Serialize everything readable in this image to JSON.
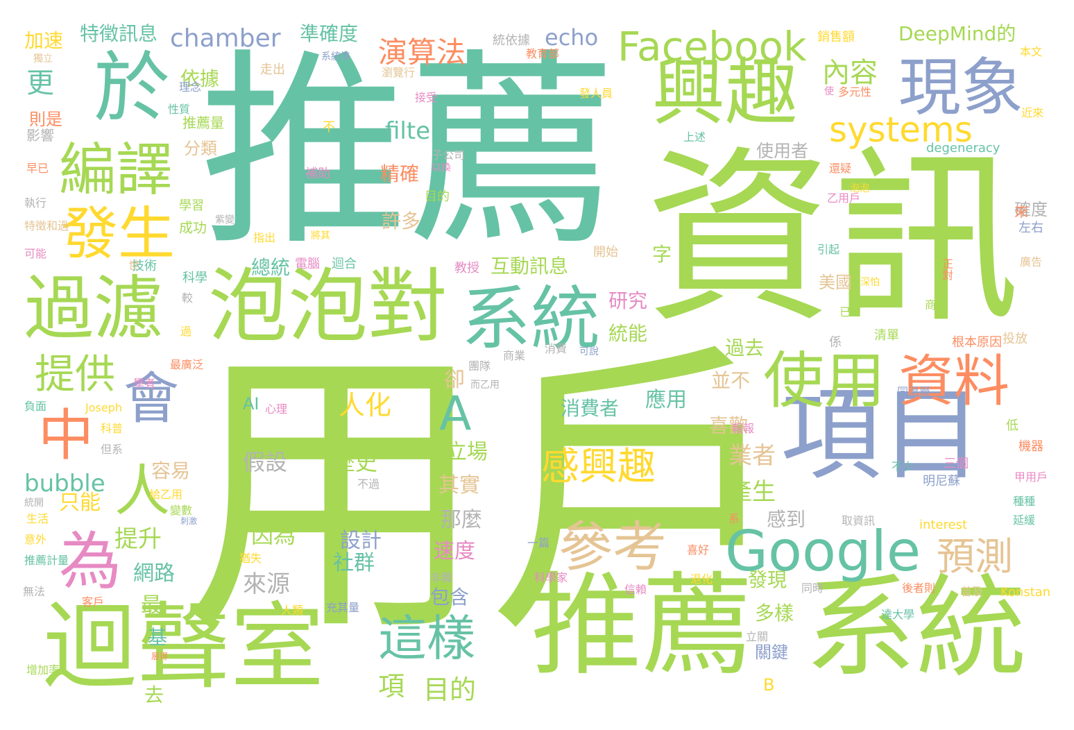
{
  "colors": {
    "teal": "#66c2a5",
    "lime": "#a6d854",
    "indigo": "#8da0cb",
    "orange": "#fc8d62",
    "yellow": "#ffd92f",
    "tan": "#e5c494",
    "pink": "#e78ac3",
    "gray": "#b3b3b3"
  },
  "words": [
    {
      "text": "用戶",
      "color": "lime"
    },
    {
      "text": "推薦",
      "color": "teal"
    },
    {
      "text": "資訊",
      "color": "lime"
    },
    {
      "text": "推薦",
      "color": "lime"
    },
    {
      "text": "系統",
      "color": "lime"
    },
    {
      "text": "迴聲室",
      "color": "lime"
    },
    {
      "text": "項目",
      "color": "indigo"
    },
    {
      "text": "泡泡對",
      "color": "lime"
    },
    {
      "text": "系統",
      "color": "teal"
    },
    {
      "text": "過濾",
      "color": "lime"
    },
    {
      "text": "興趣",
      "color": "lime"
    },
    {
      "text": "於",
      "color": "teal"
    },
    {
      "text": "現象",
      "color": "indigo"
    },
    {
      "text": "編譯",
      "color": "lime"
    },
    {
      "text": "發生",
      "color": "yellow"
    },
    {
      "text": "使用",
      "color": "lime"
    },
    {
      "text": "資料",
      "color": "orange"
    },
    {
      "text": "Google",
      "color": "teal"
    },
    {
      "text": "參考",
      "color": "tan"
    },
    {
      "text": "這樣",
      "color": "teal"
    },
    {
      "text": "Facebook",
      "color": "lime"
    },
    {
      "text": "systems",
      "color": "yellow"
    },
    {
      "text": "會",
      "color": "indigo"
    },
    {
      "text": "A",
      "color": "teal"
    },
    {
      "text": "中",
      "color": "orange"
    },
    {
      "text": "人",
      "color": "lime"
    },
    {
      "text": "為",
      "color": "pink"
    },
    {
      "text": "提供",
      "color": "lime"
    },
    {
      "text": "感興趣",
      "color": "yellow"
    },
    {
      "text": "預測",
      "color": "tan"
    },
    {
      "text": "演算法",
      "color": "orange"
    },
    {
      "text": "內容",
      "color": "lime"
    },
    {
      "text": "chamber",
      "color": "indigo"
    },
    {
      "text": "echo",
      "color": "indigo"
    },
    {
      "text": "DeepMind的",
      "color": "lime"
    },
    {
      "text": "特徵訊息",
      "color": "teal"
    },
    {
      "text": "準確度",
      "color": "teal"
    },
    {
      "text": "加速",
      "color": "yellow"
    },
    {
      "text": "filter",
      "color": "teal"
    },
    {
      "text": "bubble",
      "color": "teal"
    },
    {
      "text": "依據",
      "color": "lime"
    },
    {
      "text": "更",
      "color": "teal"
    },
    {
      "text": "人化",
      "color": "yellow"
    },
    {
      "text": "使用者",
      "color": "gray"
    },
    {
      "text": "業者",
      "color": "tan"
    },
    {
      "text": "產生",
      "color": "lime"
    },
    {
      "text": "項",
      "color": "lime"
    },
    {
      "text": "目的",
      "color": "lime"
    },
    {
      "text": "來源",
      "color": "gray"
    },
    {
      "text": "網路",
      "color": "teal"
    },
    {
      "text": "提升",
      "color": "lime"
    },
    {
      "text": "只能",
      "color": "yellow"
    },
    {
      "text": "容易",
      "color": "tan"
    },
    {
      "text": "因為",
      "color": "lime"
    },
    {
      "text": "設計",
      "color": "indigo"
    },
    {
      "text": "社群",
      "color": "teal"
    },
    {
      "text": "歷史",
      "color": "lime"
    },
    {
      "text": "假設",
      "color": "gray"
    },
    {
      "text": "應用",
      "color": "teal"
    },
    {
      "text": "消費者",
      "color": "teal"
    },
    {
      "text": "立場",
      "color": "lime"
    },
    {
      "text": "其實",
      "color": "tan"
    },
    {
      "text": "那麼",
      "color": "gray"
    },
    {
      "text": "速度",
      "color": "pink"
    },
    {
      "text": "包含",
      "color": "indigo"
    },
    {
      "text": "過去",
      "color": "lime"
    },
    {
      "text": "喜歡",
      "color": "tan"
    },
    {
      "text": "感到",
      "color": "gray"
    },
    {
      "text": "發現",
      "color": "lime"
    },
    {
      "text": "多樣",
      "color": "lime"
    },
    {
      "text": "關鍵",
      "color": "indigo"
    },
    {
      "text": "最",
      "color": "lime"
    },
    {
      "text": "基",
      "color": "teal"
    },
    {
      "text": "去",
      "color": "lime"
    },
    {
      "text": "互動訊息",
      "color": "lime"
    },
    {
      "text": "研究",
      "color": "pink"
    },
    {
      "text": "統能",
      "color": "lime"
    },
    {
      "text": "總統",
      "color": "teal"
    },
    {
      "text": "許多",
      "color": "tan"
    },
    {
      "text": "精確",
      "color": "orange"
    },
    {
      "text": "分類",
      "color": "tan"
    },
    {
      "text": "美國",
      "color": "tan"
    },
    {
      "text": "並不",
      "color": "tan"
    },
    {
      "text": "卻",
      "color": "tan"
    },
    {
      "text": "字",
      "color": "lime"
    },
    {
      "text": "AI",
      "color": "teal"
    },
    {
      "text": "B",
      "color": "yellow"
    },
    {
      "text": "interest",
      "color": "yellow"
    },
    {
      "text": "degeneracy",
      "color": "teal"
    },
    {
      "text": "成功",
      "color": "lime"
    },
    {
      "text": "推薦量",
      "color": "lime"
    },
    {
      "text": "則是",
      "color": "orange"
    },
    {
      "text": "影響",
      "color": "gray"
    },
    {
      "text": "學習",
      "color": "lime"
    },
    {
      "text": "技術",
      "color": "teal"
    },
    {
      "text": "科學",
      "color": "teal"
    },
    {
      "text": "電腦",
      "color": "pink"
    },
    {
      "text": "迴合",
      "color": "teal"
    },
    {
      "text": "教授",
      "color": "pink"
    },
    {
      "text": "開始",
      "color": "tan"
    },
    {
      "text": "目的",
      "color": "lime"
    },
    {
      "text": "不",
      "color": "yellow"
    },
    {
      "text": "補助",
      "color": "pink"
    },
    {
      "text": "走出",
      "color": "tan"
    },
    {
      "text": "統依據",
      "color": "gray"
    },
    {
      "text": "銷售額",
      "color": "yellow"
    },
    {
      "text": "本文",
      "color": "yellow"
    },
    {
      "text": "教育部",
      "color": "orange"
    },
    {
      "text": "瀏覽行",
      "color": "tan"
    },
    {
      "text": "接受",
      "color": "pink"
    },
    {
      "text": "發人員",
      "color": "yellow"
    },
    {
      "text": "多元性",
      "color": "orange"
    },
    {
      "text": "近來",
      "color": "yellow"
    },
    {
      "text": "上述",
      "color": "teal"
    },
    {
      "text": "還疑",
      "color": "orange"
    },
    {
      "text": "泡泡",
      "color": "yellow"
    },
    {
      "text": "乙用戶",
      "color": "pink"
    },
    {
      "text": "確度",
      "color": "gray"
    },
    {
      "text": "來",
      "color": "orange"
    },
    {
      "text": "左右",
      "color": "indigo"
    },
    {
      "text": "引起",
      "color": "teal"
    },
    {
      "text": "廣告",
      "color": "tan"
    },
    {
      "text": "商機",
      "color": "lime"
    },
    {
      "text": "已",
      "color": "lime"
    },
    {
      "text": "係",
      "color": "gray"
    },
    {
      "text": "清單",
      "color": "lime"
    },
    {
      "text": "根本原因",
      "color": "orange"
    },
    {
      "text": "投放",
      "color": "tan"
    },
    {
      "text": "同溫層",
      "color": "indigo"
    },
    {
      "text": "低",
      "color": "lime"
    },
    {
      "text": "機器",
      "color": "orange"
    },
    {
      "text": "三個",
      "color": "pink"
    },
    {
      "text": "明尼蘇",
      "color": "indigo"
    },
    {
      "text": "甲用戶",
      "color": "pink"
    },
    {
      "text": "種種",
      "color": "teal"
    },
    {
      "text": "延緩",
      "color": "teal"
    },
    {
      "text": "取資訊",
      "color": "gray"
    },
    {
      "text": "系",
      "color": "orange"
    },
    {
      "text": "不少",
      "color": "teal"
    },
    {
      "text": "報報",
      "color": "pink"
    },
    {
      "text": "立關",
      "color": "gray"
    },
    {
      "text": "達大學",
      "color": "teal"
    },
    {
      "text": "Konstan",
      "color": "yellow"
    },
    {
      "text": "普及",
      "color": "tan"
    },
    {
      "text": "後者則",
      "color": "orange"
    },
    {
      "text": "同時",
      "color": "gray"
    },
    {
      "text": "喜好",
      "color": "orange"
    },
    {
      "text": "退化",
      "color": "yellow"
    },
    {
      "text": "信賴",
      "color": "pink"
    },
    {
      "text": "科學家",
      "color": "pink"
    },
    {
      "text": "非難",
      "color": "gray"
    },
    {
      "text": "一篇",
      "color": "indigo"
    },
    {
      "text": "商業",
      "color": "gray"
    },
    {
      "text": "消費",
      "color": "gray"
    },
    {
      "text": "可說",
      "color": "indigo"
    },
    {
      "text": "團隊",
      "color": "gray"
    },
    {
      "text": "而乙用",
      "color": "gray"
    },
    {
      "text": "心理",
      "color": "pink"
    },
    {
      "text": "不過",
      "color": "gray"
    },
    {
      "text": "猶失",
      "color": "yellow"
    },
    {
      "text": "人類",
      "color": "yellow"
    },
    {
      "text": "充其量",
      "color": "indigo"
    },
    {
      "text": "客戶",
      "color": "orange"
    },
    {
      "text": "無法",
      "color": "gray"
    },
    {
      "text": "推薦計量",
      "color": "teal"
    },
    {
      "text": "意外",
      "color": "yellow"
    },
    {
      "text": "生活",
      "color": "yellow"
    },
    {
      "text": "統開",
      "color": "gray"
    },
    {
      "text": "但系",
      "color": "gray"
    },
    {
      "text": "科普",
      "color": "yellow"
    },
    {
      "text": "Joseph",
      "color": "yellow"
    },
    {
      "text": "負面",
      "color": "teal"
    },
    {
      "text": "學者",
      "color": "pink"
    },
    {
      "text": "最廣泛",
      "color": "orange"
    },
    {
      "text": "給乙用",
      "color": "yellow"
    },
    {
      "text": "變數",
      "color": "lime"
    },
    {
      "text": "刺激",
      "color": "indigo"
    },
    {
      "text": "增加率",
      "color": "lime"
    },
    {
      "text": "層得",
      "color": "orange"
    },
    {
      "text": "世",
      "color": "tan"
    },
    {
      "text": "指出",
      "color": "yellow"
    },
    {
      "text": "可能",
      "color": "pink"
    },
    {
      "text": "特徵和過",
      "color": "tan"
    },
    {
      "text": "執行",
      "color": "gray"
    },
    {
      "text": "早已",
      "color": "orange"
    },
    {
      "text": "獨立",
      "color": "tan"
    },
    {
      "text": "理念",
      "color": "indigo"
    },
    {
      "text": "性質",
      "color": "teal"
    },
    {
      "text": "系統準",
      "color": "indigo"
    },
    {
      "text": "子公司",
      "color": "gray"
    },
    {
      "text": "以換",
      "color": "pink"
    },
    {
      "text": "將其",
      "color": "yellow"
    },
    {
      "text": "紫變",
      "color": "gray"
    },
    {
      "text": "較",
      "color": "gray"
    },
    {
      "text": "過",
      "color": "yellow"
    },
    {
      "text": "使",
      "color": "pink"
    },
    {
      "text": "深怕",
      "color": "yellow"
    },
    {
      "text": "正對",
      "color": "orange"
    },
    {
      "text": "擔憂",
      "color": "gray"
    },
    {
      "text": "戶",
      "color": "tan"
    },
    {
      "text": "僅",
      "color": "pink"
    }
  ]
}
